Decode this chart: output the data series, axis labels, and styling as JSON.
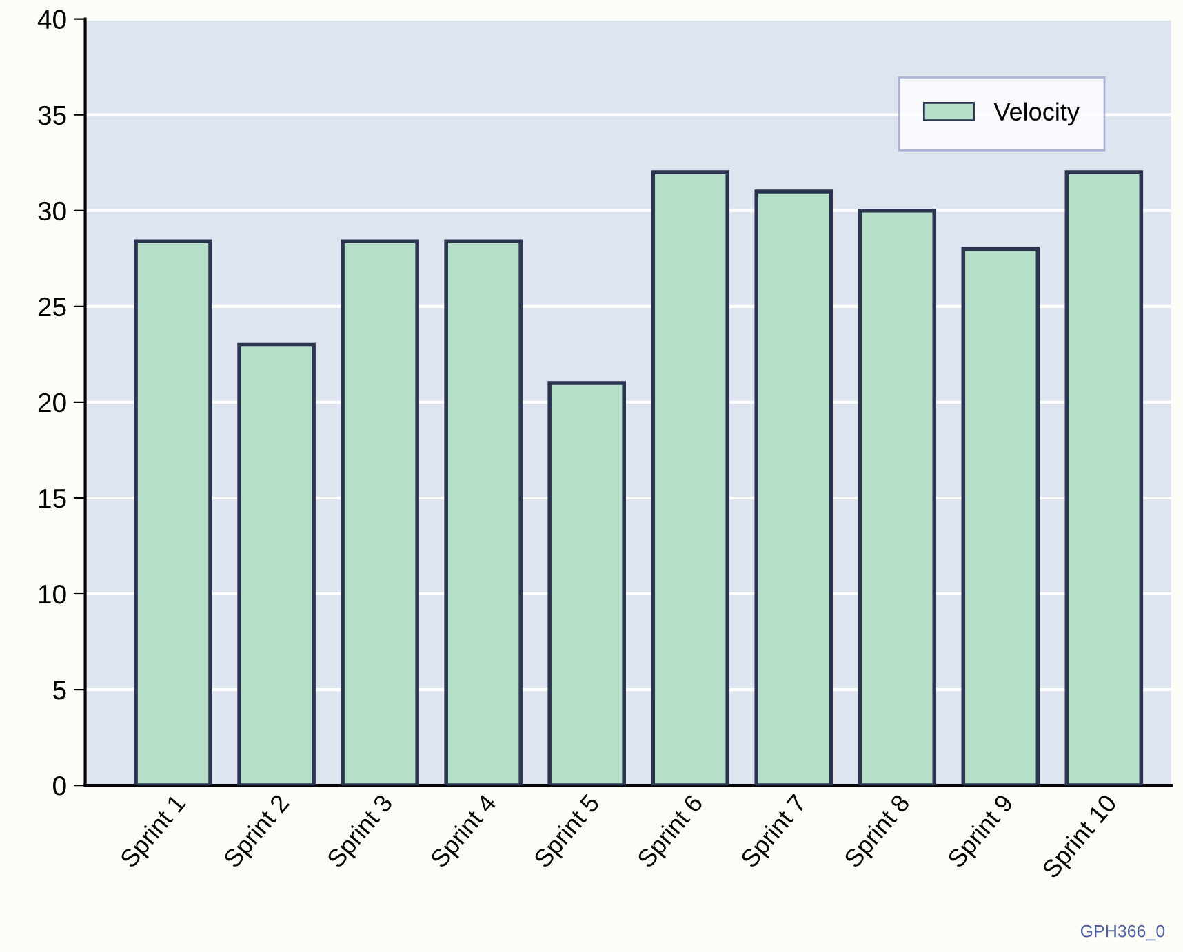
{
  "chart_data": {
    "type": "bar",
    "categories": [
      "Sprint 1",
      "Sprint 2",
      "Sprint 3",
      "Sprint 4",
      "Sprint 5",
      "Sprint 6",
      "Sprint 7",
      "Sprint 8",
      "Sprint 9",
      "Sprint 10"
    ],
    "series": [
      {
        "name": "Velocity",
        "color": "#b5dfc9",
        "values": [
          28.4,
          23,
          28.4,
          28.4,
          21,
          32,
          31,
          30,
          28,
          32
        ]
      }
    ],
    "ylim": [
      0,
      40
    ],
    "yticks": [
      0,
      5,
      10,
      15,
      20,
      25,
      30,
      35,
      40
    ],
    "grid": "y",
    "legend": "top right",
    "annotations": [
      "GPH366_0"
    ]
  }
}
